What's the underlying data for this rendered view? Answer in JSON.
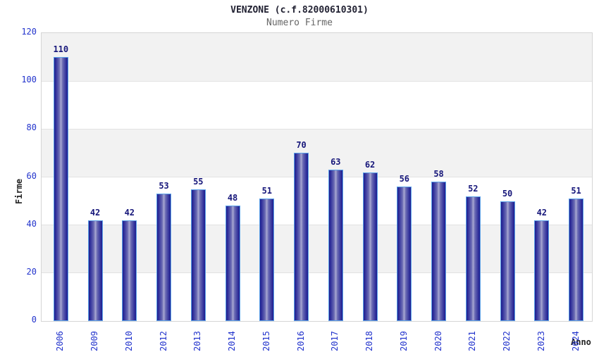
{
  "chart_data": {
    "type": "bar",
    "title": "VENZONE (c.f.82000610301)",
    "subtitle": "Numero Firme",
    "xlabel": "Anno",
    "ylabel": "Firme",
    "categories": [
      "2006",
      "2009",
      "2010",
      "2012",
      "2013",
      "2014",
      "2015",
      "2016",
      "2017",
      "2018",
      "2019",
      "2020",
      "2021",
      "2022",
      "2023",
      "2024"
    ],
    "values": [
      110,
      42,
      42,
      53,
      55,
      48,
      51,
      70,
      63,
      62,
      56,
      58,
      52,
      50,
      42,
      51
    ],
    "ylim": [
      0,
      120
    ],
    "yticks": [
      0,
      20,
      40,
      60,
      80,
      100,
      120
    ],
    "grid": "alternating-horizontal-bands",
    "legend": "none",
    "colors": {
      "bar_edge": "#5ba1e8",
      "bar_dark": "#1e1e8e",
      "bar_light": "#a9a9d2",
      "tick_label": "#2233cc",
      "value_label": "#16167a",
      "band": "#f2f2f2",
      "plot_border": "#d5d5d5",
      "title": "#222233",
      "subtitle": "#666666"
    }
  }
}
